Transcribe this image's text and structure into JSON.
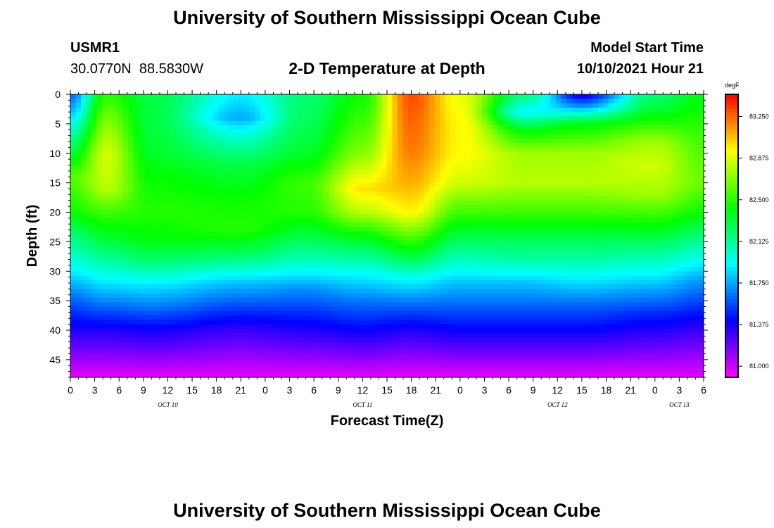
{
  "page": {
    "title_top": "University of Southern Mississippi Ocean Cube",
    "title_bottom": "University of Southern Mississippi Ocean Cube",
    "station_id": "USMR1",
    "station_coords": "30.0770N  88.5830W",
    "plot_title": "2-D Temperature at Depth",
    "model_label": "Model Start Time",
    "model_time": "10/10/2021 Hour 21"
  },
  "chart_data": {
    "type": "heatmap",
    "title": "2-D Temperature at Depth",
    "xlabel": "Forecast Time(Z)",
    "ylabel": "Depth (ft)",
    "colorbar_unit": "degF",
    "x_hours_range": [
      0,
      78
    ],
    "x_tick_labels": [
      "0",
      "3",
      "6",
      "9",
      "12",
      "15",
      "18",
      "21",
      "0",
      "3",
      "6",
      "9",
      "12",
      "15",
      "18",
      "21",
      "0",
      "3",
      "6",
      "9",
      "12",
      "15",
      "18",
      "21",
      "0",
      "3",
      "6"
    ],
    "date_labels": [
      {
        "text": "OCT 10",
        "hour": 12
      },
      {
        "text": "OCT 11",
        "hour": 36
      },
      {
        "text": "OCT 12",
        "hour": 60
      },
      {
        "text": "OCT 13",
        "hour": 75
      }
    ],
    "y_ticks": [
      0,
      5,
      10,
      15,
      20,
      25,
      30,
      35,
      40,
      45
    ],
    "ylim": [
      0,
      48
    ],
    "colorbar_ticks": [
      "83.250",
      "82.875",
      "82.500",
      "82.125",
      "81.750",
      "81.375",
      "81.000"
    ],
    "colorbar_range": [
      80.9,
      83.45
    ],
    "grid": false,
    "anchors": [
      {
        "hour": 0,
        "profile": [
          [
            0,
            81.6
          ],
          [
            3,
            81.8
          ],
          [
            8,
            82.2
          ],
          [
            14,
            82.6
          ],
          [
            20,
            82.45
          ],
          [
            24,
            82.2
          ],
          [
            30,
            81.9
          ],
          [
            35,
            81.6
          ],
          [
            40,
            81.35
          ],
          [
            48,
            80.95
          ]
        ]
      },
      {
        "hour": 4.5,
        "profile": [
          [
            0,
            82.5
          ],
          [
            5,
            82.7
          ],
          [
            10,
            82.85
          ],
          [
            16,
            82.8
          ],
          [
            20,
            82.55
          ],
          [
            25,
            82.3
          ],
          [
            30,
            82.0
          ],
          [
            34,
            81.75
          ],
          [
            40,
            81.35
          ],
          [
            48,
            80.95
          ]
        ]
      },
      {
        "hour": 10,
        "profile": [
          [
            0,
            82.3
          ],
          [
            5,
            82.3
          ],
          [
            10,
            82.35
          ],
          [
            15,
            82.45
          ],
          [
            20,
            82.5
          ],
          [
            25,
            82.4
          ],
          [
            29,
            82.15
          ],
          [
            32,
            81.9
          ],
          [
            36,
            81.65
          ],
          [
            40,
            81.38
          ],
          [
            48,
            80.95
          ]
        ]
      },
      {
        "hour": 21,
        "profile": [
          [
            0,
            81.9
          ],
          [
            4,
            81.75
          ],
          [
            7,
            82.0
          ],
          [
            12,
            82.3
          ],
          [
            18,
            82.45
          ],
          [
            23,
            82.5
          ],
          [
            27,
            82.25
          ],
          [
            32,
            81.8
          ],
          [
            36,
            81.55
          ],
          [
            40,
            81.3
          ],
          [
            48,
            80.95
          ]
        ]
      },
      {
        "hour": 29,
        "profile": [
          [
            0,
            82.2
          ],
          [
            5,
            82.25
          ],
          [
            10,
            82.35
          ],
          [
            15,
            82.55
          ],
          [
            20,
            82.5
          ],
          [
            24,
            82.3
          ],
          [
            29,
            82.0
          ],
          [
            33,
            81.7
          ],
          [
            37,
            81.5
          ],
          [
            41,
            81.3
          ],
          [
            48,
            80.95
          ]
        ]
      },
      {
        "hour": 36,
        "profile": [
          [
            0,
            82.45
          ],
          [
            5,
            82.55
          ],
          [
            10,
            82.7
          ],
          [
            16,
            83.0
          ],
          [
            20,
            82.8
          ],
          [
            23,
            82.5
          ],
          [
            26,
            82.25
          ],
          [
            30,
            81.95
          ],
          [
            35,
            81.65
          ],
          [
            40,
            81.4
          ],
          [
            48,
            80.95
          ]
        ]
      },
      {
        "hour": 42,
        "profile": [
          [
            0,
            83.3
          ],
          [
            5,
            83.25
          ],
          [
            10,
            83.2
          ],
          [
            15,
            83.1
          ],
          [
            20,
            82.95
          ],
          [
            24,
            82.6
          ],
          [
            27,
            82.35
          ],
          [
            31,
            81.95
          ],
          [
            36,
            81.6
          ],
          [
            40,
            81.35
          ],
          [
            48,
            80.95
          ]
        ]
      },
      {
        "hour": 48,
        "profile": [
          [
            0,
            82.9
          ],
          [
            5,
            82.95
          ],
          [
            10,
            82.95
          ],
          [
            15,
            82.85
          ],
          [
            20,
            82.55
          ],
          [
            24,
            82.3
          ],
          [
            28,
            82.05
          ],
          [
            32,
            81.8
          ],
          [
            36,
            81.6
          ],
          [
            40,
            81.4
          ],
          [
            48,
            80.95
          ]
        ]
      },
      {
        "hour": 56,
        "profile": [
          [
            0,
            82.2
          ],
          [
            3,
            81.9
          ],
          [
            6,
            82.4
          ],
          [
            10,
            82.75
          ],
          [
            15,
            82.8
          ],
          [
            20,
            82.55
          ],
          [
            24,
            82.3
          ],
          [
            28,
            82.1
          ],
          [
            32,
            81.8
          ],
          [
            36,
            81.6
          ],
          [
            40,
            81.4
          ],
          [
            48,
            80.95
          ]
        ]
      },
      {
        "hour": 63,
        "profile": [
          [
            0,
            81.35
          ],
          [
            2,
            81.7
          ],
          [
            5,
            82.4
          ],
          [
            10,
            82.75
          ],
          [
            15,
            82.8
          ],
          [
            20,
            82.55
          ],
          [
            24,
            82.3
          ],
          [
            28,
            82.1
          ],
          [
            32,
            81.85
          ],
          [
            36,
            81.6
          ],
          [
            40,
            81.4
          ],
          [
            48,
            80.95
          ]
        ]
      },
      {
        "hour": 72,
        "profile": [
          [
            0,
            82.2
          ],
          [
            3,
            82.35
          ],
          [
            8,
            82.75
          ],
          [
            12,
            82.85
          ],
          [
            17,
            82.75
          ],
          [
            21,
            82.5
          ],
          [
            25,
            82.25
          ],
          [
            29,
            82.0
          ],
          [
            33,
            81.75
          ],
          [
            37,
            81.5
          ],
          [
            41,
            81.3
          ],
          [
            48,
            80.95
          ]
        ]
      },
      {
        "hour": 78,
        "profile": [
          [
            0,
            82.4
          ],
          [
            5,
            82.5
          ],
          [
            10,
            82.6
          ],
          [
            15,
            82.65
          ],
          [
            20,
            82.45
          ],
          [
            24,
            82.2
          ],
          [
            28,
            81.95
          ],
          [
            32,
            81.7
          ],
          [
            36,
            81.5
          ],
          [
            40,
            81.3
          ],
          [
            48,
            80.95
          ]
        ]
      }
    ]
  }
}
